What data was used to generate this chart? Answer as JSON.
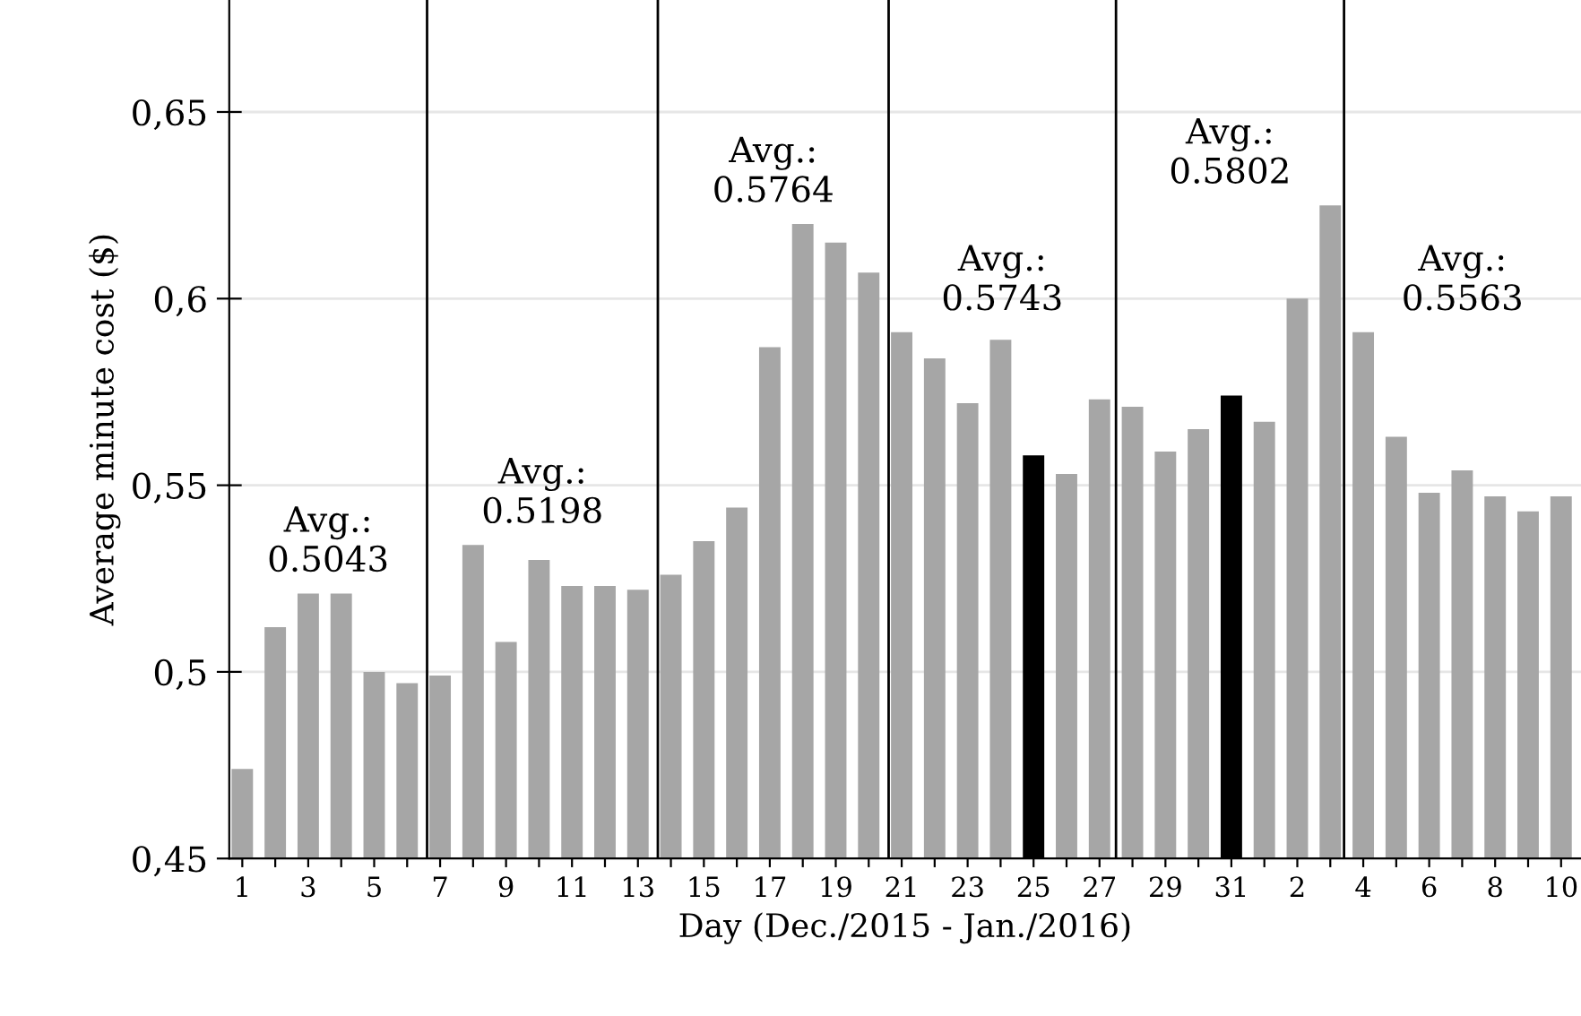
{
  "chart_data": {
    "type": "bar",
    "xlabel": "Day (Dec./2015 - Jan./2016)",
    "ylabel": "Average minute cost ($)",
    "x": [
      "2015-12-01",
      "2015-12-02",
      "2015-12-03",
      "2015-12-04",
      "2015-12-05",
      "2015-12-06",
      "2015-12-07",
      "2015-12-08",
      "2015-12-09",
      "2015-12-10",
      "2015-12-11",
      "2015-12-12",
      "2015-12-13",
      "2015-12-14",
      "2015-12-15",
      "2015-12-16",
      "2015-12-17",
      "2015-12-18",
      "2015-12-19",
      "2015-12-20",
      "2015-12-21",
      "2015-12-22",
      "2015-12-23",
      "2015-12-24",
      "2015-12-25",
      "2015-12-26",
      "2015-12-27",
      "2015-12-28",
      "2015-12-29",
      "2015-12-30",
      "2015-12-31",
      "2016-01-01",
      "2016-01-02",
      "2016-01-03",
      "2016-01-04",
      "2016-01-05",
      "2016-01-06",
      "2016-01-07",
      "2016-01-08",
      "2016-01-09",
      "2016-01-10"
    ],
    "values": [
      0.474,
      0.512,
      0.521,
      0.521,
      0.5,
      0.497,
      0.499,
      0.534,
      0.508,
      0.53,
      0.523,
      0.523,
      0.522,
      0.526,
      0.535,
      0.544,
      0.587,
      0.62,
      0.615,
      0.607,
      0.591,
      0.584,
      0.572,
      0.589,
      0.558,
      0.553,
      0.573,
      0.571,
      0.559,
      0.565,
      0.574,
      0.567,
      0.6,
      0.625,
      0.591,
      0.563,
      0.548,
      0.554,
      0.547,
      0.543,
      0.547
    ],
    "colors": [
      "#a6a6a6",
      "#a6a6a6",
      "#a6a6a6",
      "#a6a6a6",
      "#a6a6a6",
      "#a6a6a6",
      "#a6a6a6",
      "#a6a6a6",
      "#a6a6a6",
      "#a6a6a6",
      "#a6a6a6",
      "#a6a6a6",
      "#a6a6a6",
      "#a6a6a6",
      "#a6a6a6",
      "#a6a6a6",
      "#a6a6a6",
      "#a6a6a6",
      "#a6a6a6",
      "#a6a6a6",
      "#a6a6a6",
      "#a6a6a6",
      "#a6a6a6",
      "#a6a6a6",
      "#000000",
      "#a6a6a6",
      "#a6a6a6",
      "#a6a6a6",
      "#a6a6a6",
      "#a6a6a6",
      "#000000",
      "#a6a6a6",
      "#a6a6a6",
      "#a6a6a6",
      "#a6a6a6",
      "#a6a6a6",
      "#a6a6a6",
      "#a6a6a6",
      "#a6a6a6",
      "#a6a6a6",
      "#a6a6a6"
    ],
    "xlim": [
      "2015-11-30T14:30",
      "2016-01-10T14:30"
    ],
    "xticks": [
      {
        "value": "2015-12-01",
        "label": "1"
      },
      {
        "value": "2015-12-02",
        "label": null
      },
      {
        "value": "2015-12-03",
        "label": "3"
      },
      {
        "value": "2015-12-04",
        "label": null
      },
      {
        "value": "2015-12-05",
        "label": "5"
      },
      {
        "value": "2015-12-06",
        "label": null
      },
      {
        "value": "2015-12-07",
        "label": "7"
      },
      {
        "value": "2015-12-08",
        "label": null
      },
      {
        "value": "2015-12-09",
        "label": "9"
      },
      {
        "value": "2015-12-10",
        "label": null
      },
      {
        "value": "2015-12-11",
        "label": "11"
      },
      {
        "value": "2015-12-12",
        "label": null
      },
      {
        "value": "2015-12-13",
        "label": "13"
      },
      {
        "value": "2015-12-14",
        "label": null
      },
      {
        "value": "2015-12-15",
        "label": "15"
      },
      {
        "value": "2015-12-16",
        "label": null
      },
      {
        "value": "2015-12-17",
        "label": "17"
      },
      {
        "value": "2015-12-18",
        "label": null
      },
      {
        "value": "2015-12-19",
        "label": "19"
      },
      {
        "value": "2015-12-20",
        "label": null
      },
      {
        "value": "2015-12-21",
        "label": "21"
      },
      {
        "value": "2015-12-22",
        "label": null
      },
      {
        "value": "2015-12-23",
        "label": "23"
      },
      {
        "value": "2015-12-24",
        "label": null
      },
      {
        "value": "2015-12-25",
        "label": "25"
      },
      {
        "value": "2015-12-26",
        "label": null
      },
      {
        "value": "2015-12-27",
        "label": "27"
      },
      {
        "value": "2015-12-28",
        "label": null
      },
      {
        "value": "2015-12-29",
        "label": "29"
      },
      {
        "value": "2015-12-30",
        "label": null
      },
      {
        "value": "2015-12-31",
        "label": "31"
      },
      {
        "value": "2016-01-01",
        "label": null
      },
      {
        "value": "2016-01-02",
        "label": "2"
      },
      {
        "value": "2016-01-03",
        "label": null
      },
      {
        "value": "2016-01-04",
        "label": "4"
      },
      {
        "value": "2016-01-05",
        "label": null
      },
      {
        "value": "2016-01-06",
        "label": "6"
      },
      {
        "value": "2016-01-07",
        "label": null
      },
      {
        "value": "2016-01-08",
        "label": "8"
      },
      {
        "value": "2016-01-09",
        "label": null
      },
      {
        "value": "2016-01-10",
        "label": "10"
      }
    ],
    "ylim": [
      0.45,
      0.68
    ],
    "yticks": [
      {
        "value": 0.45,
        "label": "0,45"
      },
      {
        "value": 0.5,
        "label": "0,5"
      },
      {
        "value": 0.55,
        "label": "0,55"
      },
      {
        "value": 0.6,
        "label": "0,6"
      },
      {
        "value": 0.65,
        "label": "0,65"
      }
    ],
    "grid": "y",
    "ref_lines": [
      {
        "axis": "x",
        "value": "2015-12-06T14:30",
        "color": "#000000"
      },
      {
        "axis": "x",
        "value": "2015-12-13T14:30",
        "color": "#000000"
      },
      {
        "axis": "x",
        "value": "2015-12-20T14:30",
        "color": "#000000"
      },
      {
        "axis": "x",
        "value": "2015-12-27T12:00",
        "color": "#000000"
      },
      {
        "axis": "x",
        "value": "2016-01-03T10:00",
        "color": "#000000"
      }
    ],
    "annotations": [
      "Avg.:\n0.5043",
      "Avg.:\n0.5198",
      "Avg.:\n0.5764",
      "Avg.:\n0.5743",
      "Avg.:\n0.5802",
      "Avg.:\n0.5563"
    ]
  }
}
